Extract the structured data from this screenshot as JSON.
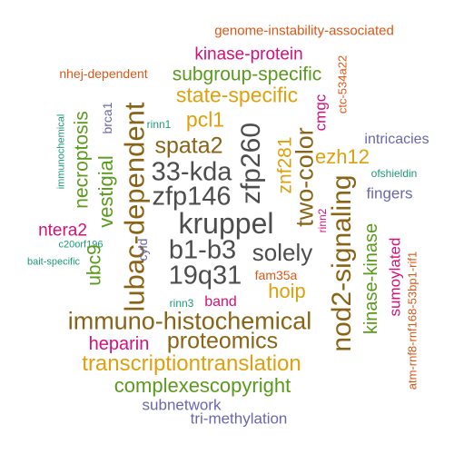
{
  "colors": {
    "dark_gray": "#4d4d4d",
    "brown": "#8a6416",
    "green": "#5a9a1c",
    "magenta": "#d4107a",
    "orange_gold": "#e0a00e",
    "orange_red": "#d85818",
    "teal": "#1b9a78",
    "slate_purple": "#6a67ad"
  },
  "words": [
    {
      "text": "genome-instability-associated",
      "color": "orange_red"
    },
    {
      "text": "kinase-protein",
      "color": "magenta"
    },
    {
      "text": "nhej-dependent",
      "color": "orange_red"
    },
    {
      "text": "subgroup-specific",
      "color": "green"
    },
    {
      "text": "state-specific",
      "color": "orange_gold"
    },
    {
      "text": "pcl1",
      "color": "orange_gold"
    },
    {
      "text": "rinn1",
      "color": "teal"
    },
    {
      "text": "spata2",
      "color": "brown"
    },
    {
      "text": "33-kda",
      "color": "dark_gray"
    },
    {
      "text": "zfp146",
      "color": "dark_gray"
    },
    {
      "text": "kruppel",
      "color": "dark_gray"
    },
    {
      "text": "b1-b3",
      "color": "dark_gray"
    },
    {
      "text": "solely",
      "color": "dark_gray"
    },
    {
      "text": "19q31",
      "color": "dark_gray"
    },
    {
      "text": "ntera2",
      "color": "magenta"
    },
    {
      "text": "c20orf196",
      "color": "teal"
    },
    {
      "text": "bait-specific",
      "color": "teal"
    },
    {
      "text": "fam35a",
      "color": "orange_red"
    },
    {
      "text": "hoip",
      "color": "orange_gold"
    },
    {
      "text": "rinn3",
      "color": "teal"
    },
    {
      "text": "band",
      "color": "magenta"
    },
    {
      "text": "immuno-histochemical",
      "color": "brown"
    },
    {
      "text": "proteomics",
      "color": "brown"
    },
    {
      "text": "heparin",
      "color": "magenta"
    },
    {
      "text": "transcriptiontranslation",
      "color": "orange_gold"
    },
    {
      "text": "complexescopyright",
      "color": "green"
    },
    {
      "text": "subnetwork",
      "color": "slate_purple"
    },
    {
      "text": "tri-methylation",
      "color": "slate_purple"
    },
    {
      "text": "intricacies",
      "color": "slate_purple"
    },
    {
      "text": "ezh12",
      "color": "orange_gold"
    },
    {
      "text": "ofshieldin",
      "color": "teal"
    },
    {
      "text": "fingers",
      "color": "slate_purple"
    },
    {
      "text": "zfp260",
      "color": "dark_gray"
    },
    {
      "text": "lubac-dependent",
      "color": "brown"
    },
    {
      "text": "two-color",
      "color": "brown"
    },
    {
      "text": "znf281",
      "color": "orange_gold"
    },
    {
      "text": "nod2-signaling",
      "color": "brown"
    },
    {
      "text": "kinase-kinase",
      "color": "green"
    },
    {
      "text": "sumoylated",
      "color": "magenta"
    },
    {
      "text": "atm-rnf8-rnf168-53bp1-rif1",
      "color": "orange_red"
    },
    {
      "text": "cmgc",
      "color": "magenta"
    },
    {
      "text": "ctc-534a22",
      "color": "orange_red"
    },
    {
      "text": "rinn2",
      "color": "magenta"
    },
    {
      "text": "necroptosis",
      "color": "green"
    },
    {
      "text": "vestigial",
      "color": "green"
    },
    {
      "text": "ubc9",
      "color": "green"
    },
    {
      "text": "immunochemical",
      "color": "teal"
    },
    {
      "text": "brca1",
      "color": "slate_purple"
    },
    {
      "text": "cyld",
      "color": "slate_purple"
    }
  ]
}
